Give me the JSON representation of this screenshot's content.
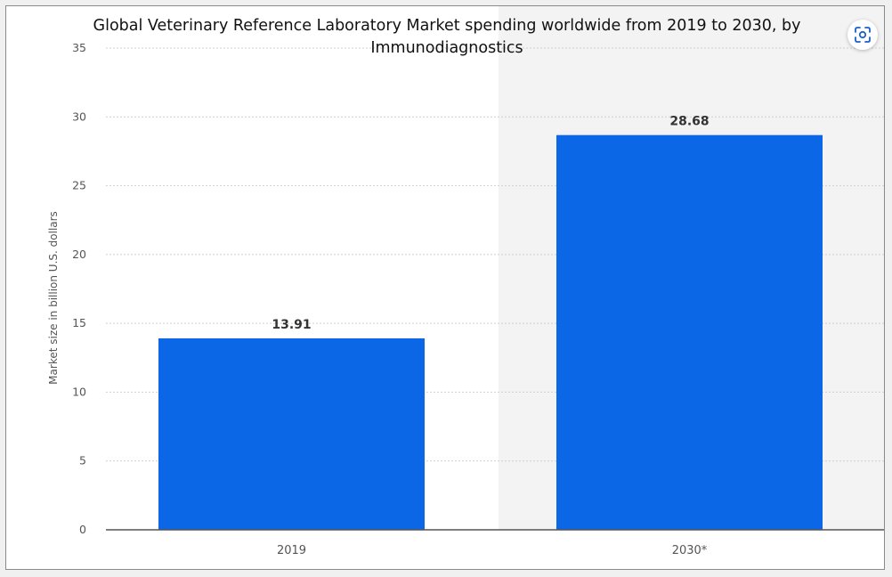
{
  "chart_data": {
    "type": "bar",
    "title": "Global Veterinary Reference Laboratory Market spending worldwide from 2019 to 2030, by Immunodiagnostics",
    "xlabel": "",
    "ylabel": "Market size in billion U.S. dollars",
    "categories": [
      "2019",
      "2030*"
    ],
    "values": [
      13.91,
      28.68
    ],
    "value_labels": [
      "13.91",
      "28.68"
    ],
    "ylim": [
      0,
      35
    ],
    "yticks": [
      0,
      5,
      10,
      15,
      20,
      25,
      30,
      35
    ],
    "ytick_labels": [
      "0",
      "5",
      "10",
      "15",
      "20",
      "25",
      "30",
      "35"
    ],
    "grid": true,
    "highlighted_categories": [
      "2030*"
    ]
  },
  "colors": {
    "bar": "#0b67e6",
    "highlight_band": "#f3f3f3",
    "grid": "#cfcfcf",
    "axis": "#555555",
    "tick_text": "#555555",
    "value_label": "#333333"
  },
  "icons": {
    "scan_button": "scan-icon"
  }
}
